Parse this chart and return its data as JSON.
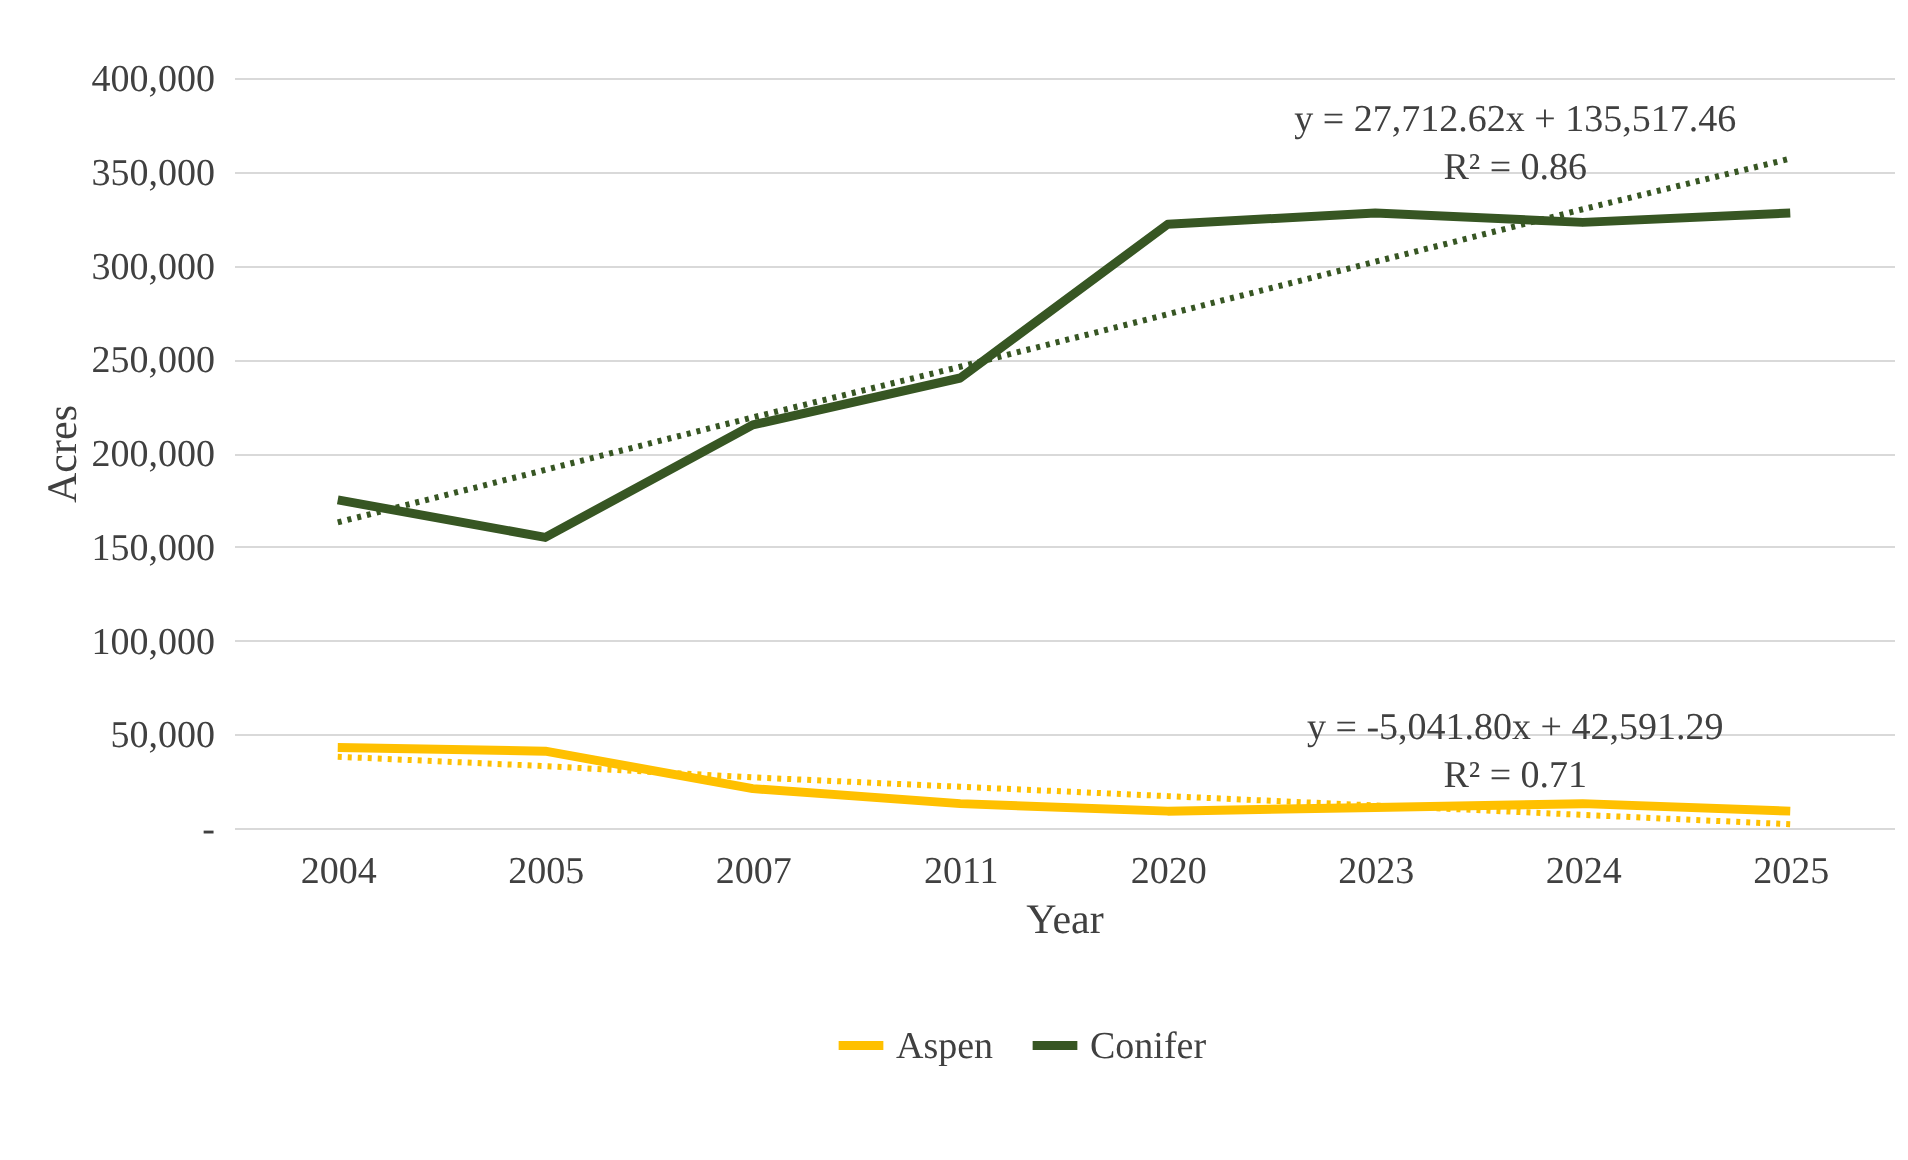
{
  "chart_data": {
    "type": "line",
    "xlabel": "Year",
    "ylabel": "Acres",
    "categories": [
      "2004",
      "2005",
      "2007",
      "2011",
      "2020",
      "2023",
      "2024",
      "2025"
    ],
    "series": [
      {
        "name": "Aspen",
        "color": "#ffc000",
        "values": [
          43000,
          41000,
          21000,
          13000,
          9000,
          11000,
          13000,
          9000
        ]
      },
      {
        "name": "Conifer",
        "color": "#375623",
        "values": [
          175000,
          155000,
          215000,
          240000,
          322000,
          328000,
          323000,
          328000
        ]
      },
      {
        "type": "line",
        "line_style": "dotted",
        "color": "#ffc000",
        "values": [
          38000,
          33000,
          27000,
          22000,
          17000,
          12000,
          7000,
          2000
        ]
      },
      {
        "type": "line",
        "line_style": "dotted",
        "color": "#375623",
        "values": [
          163000,
          191000,
          219000,
          246000,
          274000,
          302000,
          330000,
          357000
        ]
      }
    ],
    "ylim": [
      0,
      400000
    ],
    "yticks": [
      {
        "value": 0,
        "label": "-"
      },
      {
        "value": 50000,
        "label": "50,000"
      },
      {
        "value": 100000,
        "label": "100,000"
      },
      {
        "value": 150000,
        "label": "150,000"
      },
      {
        "value": 200000,
        "label": "200,000"
      },
      {
        "value": 250000,
        "label": "250,000"
      },
      {
        "value": 300000,
        "label": "300,000"
      },
      {
        "value": 350000,
        "label": "350,000"
      },
      {
        "value": 400000,
        "label": "400,000"
      }
    ],
    "grid": "y",
    "legend": "bottom",
    "line_style": "solid",
    "marker": "none",
    "annotations": [
      "y = -5,041.80x + 42,591.29\nR² = 0.71",
      "y = 27,712.62x + 135,517.46\nR² = 0.86"
    ]
  }
}
